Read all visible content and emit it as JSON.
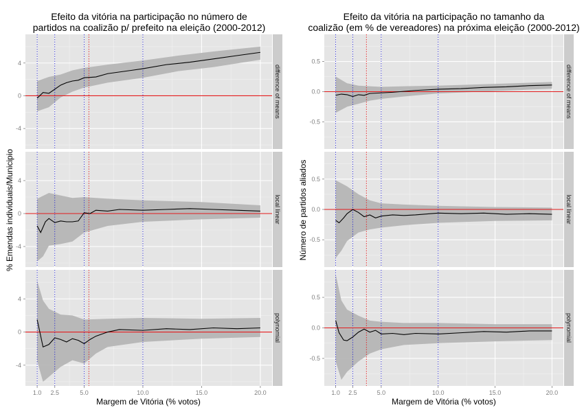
{
  "chart_data": [
    {
      "type": "line",
      "title_line1": "Efeito da vitória na participação no número de",
      "title_line2": "partidos na coalizão p/ prefeito na eleição  (2000-2012)",
      "xlabel": "Margem de Vitória (% votos)",
      "ylabel": "% Emendas individuais/Municipio",
      "xlim": [
        0,
        21
      ],
      "x_ticks": [
        1.0,
        2.5,
        5.0,
        10.0,
        15.0,
        20.0
      ],
      "x_tick_labels": [
        "1.0",
        "2.5",
        "5.0",
        "10.0",
        "15.0",
        "20.0"
      ],
      "ylim": [
        -6.5,
        7.5
      ],
      "y_ticks": [
        -4,
        0,
        4
      ],
      "y_tick_labels": [
        "-4",
        "0",
        "4"
      ],
      "reference_line_y": 0,
      "vertical_lines_blue": [
        1.0,
        2.5,
        5.0,
        10.0
      ],
      "vertical_line_red": 5.4,
      "facets": [
        {
          "strip_label": "difference of means",
          "estimate": [
            [
              1.0,
              -0.3
            ],
            [
              1.5,
              0.4
            ],
            [
              2.0,
              0.3
            ],
            [
              2.5,
              0.8
            ],
            [
              3.0,
              1.3
            ],
            [
              3.5,
              1.6
            ],
            [
              4.0,
              1.8
            ],
            [
              4.5,
              1.9
            ],
            [
              5.0,
              2.2
            ],
            [
              6.0,
              2.3
            ],
            [
              7.0,
              2.7
            ],
            [
              8.0,
              2.9
            ],
            [
              9.0,
              3.1
            ],
            [
              10.0,
              3.3
            ],
            [
              12.0,
              3.8
            ],
            [
              14.0,
              4.1
            ],
            [
              16.0,
              4.5
            ],
            [
              18.0,
              4.9
            ],
            [
              20.0,
              5.3
            ]
          ],
          "band_upper": [
            [
              1.0,
              1.8
            ],
            [
              2.0,
              2.3
            ],
            [
              3.0,
              2.6
            ],
            [
              4.0,
              3.1
            ],
            [
              5.0,
              3.4
            ],
            [
              7.0,
              3.8
            ],
            [
              10.0,
              4.3
            ],
            [
              13.0,
              4.9
            ],
            [
              16.0,
              5.4
            ],
            [
              20.0,
              6.0
            ]
          ],
          "band_lower": [
            [
              1.0,
              -1.9
            ],
            [
              2.0,
              -1.4
            ],
            [
              3.0,
              -0.2
            ],
            [
              4.0,
              0.5
            ],
            [
              5.0,
              1.0
            ],
            [
              7.0,
              1.6
            ],
            [
              10.0,
              2.2
            ],
            [
              13.0,
              3.0
            ],
            [
              16.0,
              3.5
            ],
            [
              20.0,
              4.4
            ]
          ]
        },
        {
          "strip_label": "local linear",
          "estimate": [
            [
              1.0,
              -1.5
            ],
            [
              1.3,
              -2.3
            ],
            [
              1.7,
              -1.0
            ],
            [
              2.0,
              -0.6
            ],
            [
              2.5,
              -1.1
            ],
            [
              3.0,
              -0.9
            ],
            [
              3.5,
              -1.0
            ],
            [
              4.0,
              -1.0
            ],
            [
              4.5,
              -0.9
            ],
            [
              5.0,
              0.1
            ],
            [
              5.5,
              0.0
            ],
            [
              6.0,
              0.4
            ],
            [
              7.0,
              0.3
            ],
            [
              8.0,
              0.5
            ],
            [
              10.0,
              0.4
            ],
            [
              12.0,
              0.5
            ],
            [
              14.0,
              0.6
            ],
            [
              16.0,
              0.5
            ],
            [
              18.0,
              0.4
            ],
            [
              20.0,
              0.3
            ]
          ],
          "band_upper": [
            [
              1.0,
              1.8
            ],
            [
              2.0,
              2.5
            ],
            [
              3.0,
              2.2
            ],
            [
              4.0,
              1.9
            ],
            [
              5.0,
              2.0
            ],
            [
              7.0,
              1.8
            ],
            [
              10.0,
              1.6
            ],
            [
              15.0,
              1.4
            ],
            [
              20.0,
              1.0
            ]
          ],
          "band_lower": [
            [
              1.0,
              -5.8
            ],
            [
              1.5,
              -5.2
            ],
            [
              2.0,
              -3.9
            ],
            [
              3.0,
              -3.7
            ],
            [
              4.0,
              -3.4
            ],
            [
              5.0,
              -2.3
            ],
            [
              7.0,
              -1.5
            ],
            [
              10.0,
              -1.0
            ],
            [
              15.0,
              -0.7
            ],
            [
              20.0,
              -0.5
            ]
          ]
        },
        {
          "strip_label": "polynomial",
          "estimate": [
            [
              1.0,
              1.5
            ],
            [
              1.5,
              -1.8
            ],
            [
              2.0,
              -1.5
            ],
            [
              2.5,
              -0.7
            ],
            [
              3.0,
              -0.9
            ],
            [
              3.5,
              -1.2
            ],
            [
              4.0,
              -0.8
            ],
            [
              4.5,
              -1.0
            ],
            [
              5.0,
              -1.4
            ],
            [
              5.5,
              -0.9
            ],
            [
              6.0,
              -0.5
            ],
            [
              7.0,
              0.0
            ],
            [
              8.0,
              0.3
            ],
            [
              10.0,
              0.2
            ],
            [
              12.0,
              0.4
            ],
            [
              14.0,
              0.3
            ],
            [
              16.0,
              0.5
            ],
            [
              18.0,
              0.4
            ],
            [
              20.0,
              0.5
            ]
          ],
          "band_upper": [
            [
              1.0,
              6.2
            ],
            [
              1.5,
              3.8
            ],
            [
              2.0,
              2.8
            ],
            [
              3.0,
              2.1
            ],
            [
              4.0,
              2.0
            ],
            [
              5.0,
              1.5
            ],
            [
              7.0,
              1.6
            ],
            [
              10.0,
              1.7
            ],
            [
              15.0,
              1.6
            ],
            [
              20.0,
              1.7
            ]
          ],
          "band_lower": [
            [
              1.0,
              -3.5
            ],
            [
              1.5,
              -6.0
            ],
            [
              2.0,
              -5.4
            ],
            [
              3.0,
              -4.2
            ],
            [
              4.0,
              -3.4
            ],
            [
              5.0,
              -3.8
            ],
            [
              6.0,
              -2.6
            ],
            [
              7.0,
              -1.8
            ],
            [
              10.0,
              -1.2
            ],
            [
              15.0,
              -0.8
            ],
            [
              20.0,
              -0.6
            ]
          ]
        }
      ]
    },
    {
      "type": "line",
      "title_line1": "Efeito da vitória na participação no tamanho da",
      "title_line2": "coalizão (em % de vereadores) na próxima eleição (2000-2012)",
      "xlabel": "Margem de Vitória (% votos)",
      "ylabel": "Número de partidos aliados",
      "xlim": [
        0,
        21
      ],
      "x_ticks": [
        1.0,
        2.5,
        5.0,
        10.0,
        15.0,
        20.0
      ],
      "x_tick_labels": [
        "1.0",
        "2.5",
        "5.0",
        "10.0",
        "15.0",
        "20.0"
      ],
      "ylim": [
        -0.95,
        0.95
      ],
      "y_ticks": [
        -0.5,
        0.0,
        0.5
      ],
      "y_tick_labels": [
        "-0.5",
        "0.0",
        "0.5"
      ],
      "reference_line_y": 0,
      "vertical_lines_blue": [
        1.0,
        2.5,
        5.0,
        10.0
      ],
      "vertical_line_red": 3.7,
      "facets": [
        {
          "strip_label": "difference of means",
          "estimate": [
            [
              1.0,
              -0.06
            ],
            [
              1.5,
              -0.04
            ],
            [
              2.0,
              -0.05
            ],
            [
              2.5,
              -0.08
            ],
            [
              3.0,
              -0.05
            ],
            [
              3.5,
              -0.06
            ],
            [
              4.0,
              -0.03
            ],
            [
              5.0,
              -0.02
            ],
            [
              6.0,
              -0.01
            ],
            [
              8.0,
              0.02
            ],
            [
              10.0,
              0.04
            ],
            [
              12.0,
              0.05
            ],
            [
              14.0,
              0.07
            ],
            [
              16.0,
              0.08
            ],
            [
              18.0,
              0.1
            ],
            [
              20.0,
              0.11
            ]
          ],
          "band_upper": [
            [
              1.0,
              0.25
            ],
            [
              2.0,
              0.14
            ],
            [
              3.0,
              0.1
            ],
            [
              4.0,
              0.09
            ],
            [
              5.0,
              0.08
            ],
            [
              7.0,
              0.09
            ],
            [
              10.0,
              0.1
            ],
            [
              15.0,
              0.13
            ],
            [
              20.0,
              0.16
            ]
          ],
          "band_lower": [
            [
              1.0,
              -0.35
            ],
            [
              2.0,
              -0.25
            ],
            [
              3.0,
              -0.2
            ],
            [
              4.0,
              -0.15
            ],
            [
              5.0,
              -0.12
            ],
            [
              7.0,
              -0.08
            ],
            [
              10.0,
              -0.03
            ],
            [
              15.0,
              0.01
            ],
            [
              20.0,
              0.05
            ]
          ]
        },
        {
          "strip_label": "local linear",
          "estimate": [
            [
              1.0,
              -0.18
            ],
            [
              1.3,
              -0.22
            ],
            [
              1.7,
              -0.14
            ],
            [
              2.0,
              -0.07
            ],
            [
              2.5,
              0.0
            ],
            [
              3.0,
              -0.05
            ],
            [
              3.5,
              -0.12
            ],
            [
              4.0,
              -0.09
            ],
            [
              4.5,
              -0.14
            ],
            [
              5.0,
              -0.11
            ],
            [
              6.0,
              -0.09
            ],
            [
              7.0,
              -0.1
            ],
            [
              8.0,
              -0.09
            ],
            [
              10.0,
              -0.06
            ],
            [
              12.0,
              -0.07
            ],
            [
              14.0,
              -0.06
            ],
            [
              16.0,
              -0.08
            ],
            [
              18.0,
              -0.07
            ],
            [
              20.0,
              -0.08
            ]
          ],
          "band_upper": [
            [
              1.0,
              0.48
            ],
            [
              2.0,
              0.38
            ],
            [
              3.0,
              0.25
            ],
            [
              4.0,
              0.15
            ],
            [
              5.0,
              0.1
            ],
            [
              7.0,
              0.08
            ],
            [
              10.0,
              0.06
            ],
            [
              15.0,
              0.04
            ],
            [
              20.0,
              0.03
            ]
          ],
          "band_lower": [
            [
              1.0,
              -0.8
            ],
            [
              1.5,
              -0.68
            ],
            [
              2.0,
              -0.52
            ],
            [
              3.0,
              -0.38
            ],
            [
              4.0,
              -0.33
            ],
            [
              5.0,
              -0.3
            ],
            [
              7.0,
              -0.26
            ],
            [
              10.0,
              -0.22
            ],
            [
              15.0,
              -0.19
            ],
            [
              20.0,
              -0.18
            ]
          ]
        },
        {
          "strip_label": "polynomial",
          "estimate": [
            [
              1.0,
              0.12
            ],
            [
              1.3,
              -0.08
            ],
            [
              1.7,
              -0.2
            ],
            [
              2.0,
              -0.21
            ],
            [
              2.5,
              -0.15
            ],
            [
              3.0,
              -0.07
            ],
            [
              3.5,
              -0.02
            ],
            [
              4.0,
              -0.07
            ],
            [
              4.5,
              -0.04
            ],
            [
              5.0,
              -0.1
            ],
            [
              6.0,
              -0.09
            ],
            [
              7.0,
              -0.11
            ],
            [
              8.0,
              -0.09
            ],
            [
              10.0,
              -0.1
            ],
            [
              12.0,
              -0.08
            ],
            [
              14.0,
              -0.06
            ],
            [
              16.0,
              -0.07
            ],
            [
              18.0,
              -0.05
            ],
            [
              20.0,
              -0.05
            ]
          ],
          "band_upper": [
            [
              1.0,
              0.88
            ],
            [
              1.5,
              0.45
            ],
            [
              2.0,
              0.3
            ],
            [
              3.0,
              0.2
            ],
            [
              4.0,
              0.12
            ],
            [
              5.0,
              0.1
            ],
            [
              7.0,
              0.08
            ],
            [
              10.0,
              0.08
            ],
            [
              15.0,
              0.06
            ],
            [
              20.0,
              0.06
            ]
          ],
          "band_lower": [
            [
              1.0,
              -0.55
            ],
            [
              1.5,
              -0.85
            ],
            [
              2.0,
              -0.72
            ],
            [
              3.0,
              -0.55
            ],
            [
              4.0,
              -0.42
            ],
            [
              5.0,
              -0.35
            ],
            [
              7.0,
              -0.28
            ],
            [
              10.0,
              -0.25
            ],
            [
              15.0,
              -0.22
            ],
            [
              20.0,
              -0.2
            ]
          ]
        }
      ]
    }
  ]
}
